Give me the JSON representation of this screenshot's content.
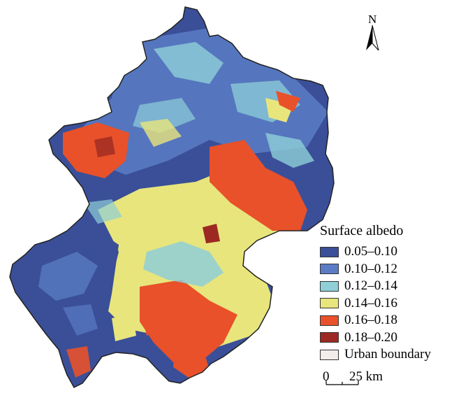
{
  "legend": {
    "title": "Surface albedo",
    "items": [
      {
        "label": "0.05–0.10",
        "color": "#3a4f98"
      },
      {
        "label": "0.10–0.12",
        "color": "#5a7cc4"
      },
      {
        "label": "0.12–0.14",
        "color": "#8ecfd8"
      },
      {
        "label": "0.14–0.16",
        "color": "#e8e57c"
      },
      {
        "label": "0.16–0.18",
        "color": "#e8512a"
      },
      {
        "label": "0.18–0.20",
        "color": "#9c2a22"
      },
      {
        "label": "Urban boundary",
        "color": "#f2ecea"
      }
    ]
  },
  "north_arrow": {
    "label": "N"
  },
  "scale_bar": {
    "zero": "0",
    "max": "25 km"
  },
  "icons": [
    "north-arrow-icon",
    "scale-bar-icon"
  ]
}
